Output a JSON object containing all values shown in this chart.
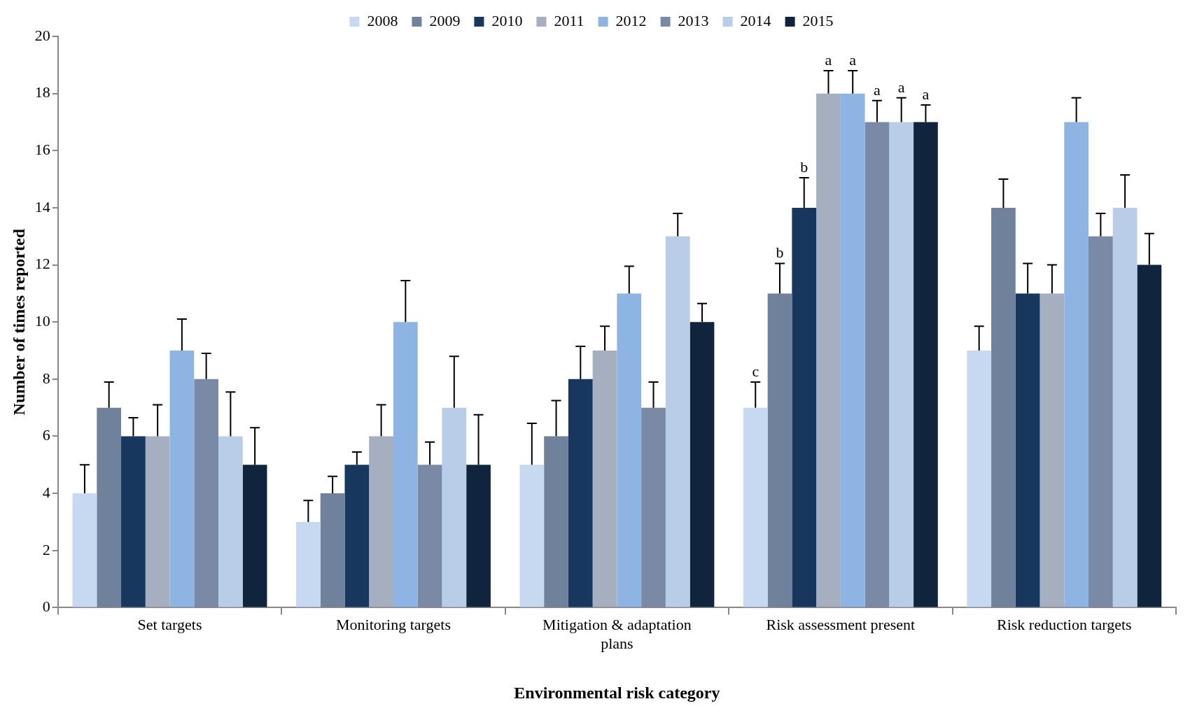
{
  "chart_data": {
    "type": "bar",
    "xlabel": "Environmental risk category",
    "ylabel": "Number of times reported",
    "categories": [
      "Set targets",
      "Monitoring targets",
      "Mitigation & adaptation plans",
      "Risk assessment present",
      "Risk reduction targets"
    ],
    "ylim": [
      0,
      20
    ],
    "yticks": [
      0,
      2,
      4,
      6,
      8,
      10,
      12,
      14,
      16,
      18,
      20
    ],
    "grid": false,
    "legend": "top",
    "series": [
      {
        "name": "2008",
        "color": "#c6d9f1",
        "values": [
          4,
          3,
          5,
          7,
          9
        ],
        "errors": [
          1.0,
          0.75,
          1.45,
          0.9,
          0.85
        ],
        "value_labels": [
          null,
          null,
          null,
          "c",
          null
        ]
      },
      {
        "name": "2009",
        "color": "#6f819b",
        "values": [
          7,
          4,
          6,
          11,
          14
        ],
        "errors": [
          0.9,
          0.6,
          1.25,
          1.05,
          1.0
        ],
        "value_labels": [
          null,
          null,
          null,
          "b",
          null
        ]
      },
      {
        "name": "2010",
        "color": "#17375e",
        "values": [
          6,
          5,
          8,
          14,
          11
        ],
        "errors": [
          0.65,
          0.45,
          1.15,
          1.05,
          1.05
        ],
        "value_labels": [
          null,
          null,
          null,
          "b",
          null
        ]
      },
      {
        "name": "2011",
        "color": "#a6afbf",
        "values": [
          6,
          6,
          9,
          18,
          11
        ],
        "errors": [
          1.1,
          1.1,
          0.85,
          0.8,
          1.0
        ],
        "value_labels": [
          null,
          null,
          null,
          "a",
          null
        ]
      },
      {
        "name": "2012",
        "color": "#8eb4e3",
        "values": [
          9,
          10,
          11,
          18,
          17
        ],
        "errors": [
          1.1,
          1.45,
          0.95,
          0.8,
          0.85
        ],
        "value_labels": [
          null,
          null,
          null,
          "a",
          null
        ]
      },
      {
        "name": "2013",
        "color": "#7a8aa6",
        "values": [
          8,
          5,
          7,
          17,
          13
        ],
        "errors": [
          0.9,
          0.8,
          0.9,
          0.75,
          0.8
        ],
        "value_labels": [
          null,
          null,
          null,
          "a",
          null
        ]
      },
      {
        "name": "2014",
        "color": "#b9cde9",
        "values": [
          6,
          7,
          13,
          17,
          14
        ],
        "errors": [
          1.55,
          1.8,
          0.8,
          0.85,
          1.15
        ],
        "value_labels": [
          null,
          null,
          null,
          "a",
          null
        ]
      },
      {
        "name": "2015",
        "color": "#10243e",
        "values": [
          5,
          5,
          10,
          17,
          12
        ],
        "errors": [
          1.3,
          1.75,
          0.65,
          0.6,
          1.1
        ],
        "value_labels": [
          null,
          null,
          null,
          "a",
          null
        ]
      }
    ]
  }
}
